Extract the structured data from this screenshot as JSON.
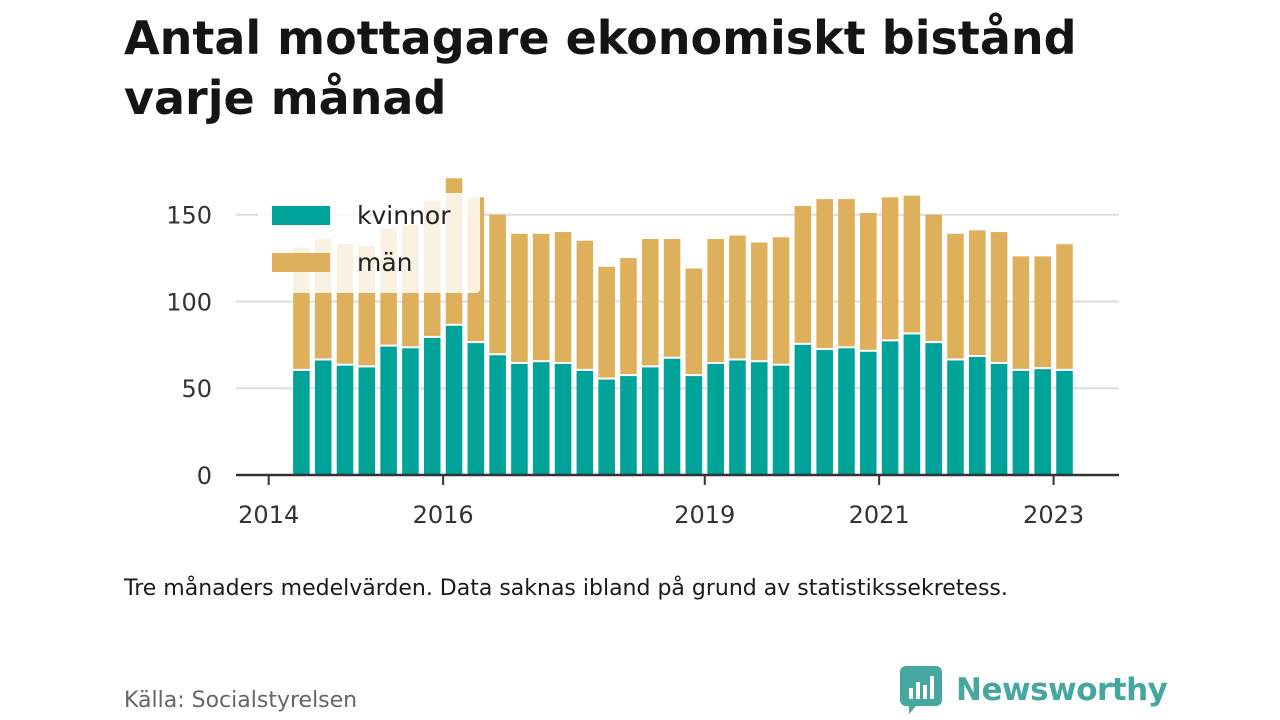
{
  "colors": {
    "kvinnor": "#00a39a",
    "man": "#deb05c",
    "grid": "#dddddd",
    "axis": "#333333",
    "brand": "#46a6a0"
  },
  "header": {
    "title": "Antal mottagare ekonomiskt bistånd varje månad"
  },
  "footer": {
    "note": "Tre månaders medelvärden. Data saknas ibland på grund av statistikssekretess.",
    "source": "Källa: Socialstyrelsen",
    "brand": "Newsworthy",
    "brand_icon": "bar-chart-chat-icon"
  },
  "chart_data": {
    "type": "bar",
    "stacked": true,
    "title": "",
    "xlabel": "",
    "ylabel": "",
    "ylim": [
      0,
      170
    ],
    "yticks": [
      0,
      50,
      100,
      150
    ],
    "xticks": [
      {
        "label": "2014",
        "year": 2014.0
      },
      {
        "label": "2016",
        "year": 2016.0
      },
      {
        "label": "2019",
        "year": 2019.0
      },
      {
        "label": "2021",
        "year": 2021.0
      },
      {
        "label": "2023",
        "year": 2023.0
      }
    ],
    "xrange": [
      2013.625,
      2023.75
    ],
    "bar_width_years": 0.19,
    "grid": true,
    "legend": "top-left",
    "series": [
      {
        "name": "kvinnor",
        "values": [
          60,
          66,
          63,
          62,
          74,
          73,
          79,
          86,
          76,
          69,
          64,
          65,
          64,
          60,
          55,
          57,
          62,
          67,
          57,
          64,
          66,
          65,
          63,
          75,
          72,
          73,
          71,
          77,
          81,
          76,
          66,
          68,
          64,
          60,
          61,
          60
        ]
      },
      {
        "name": "män",
        "values": [
          71,
          70,
          70,
          70,
          68,
          71,
          79,
          85,
          84,
          81,
          75,
          74,
          76,
          75,
          65,
          68,
          74,
          69,
          62,
          72,
          72,
          69,
          74,
          80,
          87,
          86,
          80,
          83,
          80,
          74,
          73,
          73,
          76,
          66,
          65,
          73
        ]
      }
    ],
    "x": [
      2014.375,
      2014.625,
      2014.875,
      2015.125,
      2015.375,
      2015.625,
      2015.875,
      2016.125,
      2016.375,
      2016.625,
      2016.875,
      2017.125,
      2017.375,
      2017.625,
      2017.875,
      2018.125,
      2018.375,
      2018.625,
      2018.875,
      2019.125,
      2019.375,
      2019.625,
      2019.875,
      2020.125,
      2020.375,
      2020.625,
      2020.875,
      2021.125,
      2021.375,
      2021.625,
      2021.875,
      2022.125,
      2022.375,
      2022.625,
      2022.875,
      2023.125
    ]
  }
}
